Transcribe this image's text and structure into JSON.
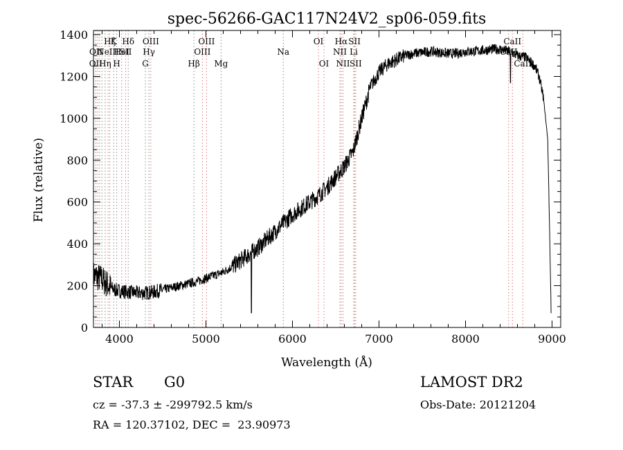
{
  "chart_data": {
    "type": "line",
    "title": "spec-56266-GAC117N24V2_sp06-059.fits",
    "xlabel": "Wavelength (Å)",
    "ylabel": "Flux (relative)",
    "xlim": [
      3700,
      9100
    ],
    "ylim": [
      0,
      1420
    ],
    "xticks": [
      4000,
      5000,
      6000,
      7000,
      8000,
      9000
    ],
    "yticks": [
      0,
      200,
      400,
      600,
      800,
      1000,
      1200,
      1400
    ],
    "grid": false,
    "legend": "none",
    "series": [
      {
        "x": [
          3700,
          3750,
          3800,
          3850,
          3900,
          3950,
          4000,
          4100,
          4200,
          4300,
          4400,
          4500,
          4600,
          4700,
          4800,
          4900,
          5000,
          5100,
          5200,
          5300,
          5400,
          5500,
          5600,
          5700,
          5800,
          5900,
          6000,
          6100,
          6200,
          6300,
          6400,
          6500,
          6600,
          6700,
          6800,
          6900,
          7000,
          7100,
          7200,
          7300,
          7400,
          7500,
          7600,
          7700,
          7800,
          7900,
          8000,
          8100,
          8200,
          8300,
          8400,
          8500,
          8600,
          8700,
          8800,
          8850,
          8900,
          8950,
          8970,
          8990
        ],
        "y": [
          250,
          240,
          230,
          210,
          190,
          180,
          175,
          170,
          165,
          165,
          170,
          180,
          190,
          200,
          210,
          220,
          235,
          250,
          265,
          290,
          320,
          350,
          380,
          420,
          460,
          500,
          540,
          570,
          600,
          630,
          670,
          720,
          770,
          840,
          1000,
          1150,
          1220,
          1260,
          1280,
          1300,
          1310,
          1315,
          1320,
          1315,
          1310,
          1310,
          1320,
          1320,
          1325,
          1330,
          1330,
          1320,
          1300,
          1290,
          1250,
          1200,
          1100,
          900,
          500,
          50
        ]
      }
    ],
    "absorption_features": [
      {
        "x": 5525,
        "y": 70
      },
      {
        "x": 8520,
        "y": 1170
      }
    ],
    "line_markers": [
      {
        "wavelength": 3727,
        "color": "#e07070",
        "label": "OII",
        "row": 3
      },
      {
        "wavelength": 3729,
        "color": "#e07070",
        "label": "OII",
        "row": 2
      },
      {
        "wavelength": 3750,
        "color": "#888888",
        "label": "",
        "row": 0
      },
      {
        "wavelength": 3771,
        "color": "#888888",
        "label": "",
        "row": 0
      },
      {
        "wavelength": 3798,
        "color": "#888888",
        "label": "",
        "row": 0
      },
      {
        "wavelength": 3835,
        "color": "#888888",
        "label": "Hη",
        "row": 3
      },
      {
        "wavelength": 3869,
        "color": "#e07070",
        "label": "NeIII",
        "row": 2
      },
      {
        "wavelength": 3889,
        "color": "#888888",
        "label": "Hζ",
        "row": 1
      },
      {
        "wavelength": 3934,
        "color": "#888888",
        "label": "K",
        "row": 1
      },
      {
        "wavelength": 3969,
        "color": "#888888",
        "label": "H",
        "row": 3
      },
      {
        "wavelength": 4026,
        "color": "#e07070",
        "label": "HeI",
        "row": 2
      },
      {
        "wavelength": 4072,
        "color": "#e07070",
        "label": "SII",
        "row": 2
      },
      {
        "wavelength": 4102,
        "color": "#888888",
        "label": "Hδ",
        "row": 1
      },
      {
        "wavelength": 4300,
        "color": "#888888",
        "label": "G",
        "row": 3
      },
      {
        "wavelength": 4341,
        "color": "#888888",
        "label": "Hγ",
        "row": 2
      },
      {
        "wavelength": 4363,
        "color": "#e07070",
        "label": "OIII",
        "row": 1
      },
      {
        "wavelength": 4861,
        "color": "#888888",
        "label": "Hβ",
        "row": 3
      },
      {
        "wavelength": 4959,
        "color": "#e07070",
        "label": "OIII",
        "row": 2
      },
      {
        "wavelength": 5007,
        "color": "#e07070",
        "label": "OIII",
        "row": 1
      },
      {
        "wavelength": 5175,
        "color": "#888888",
        "label": "Mg",
        "row": 3
      },
      {
        "wavelength": 5894,
        "color": "#888888",
        "label": "Na",
        "row": 2
      },
      {
        "wavelength": 6300,
        "color": "#e07070",
        "label": "OI",
        "row": 1
      },
      {
        "wavelength": 6364,
        "color": "#e07070",
        "label": "OI",
        "row": 3
      },
      {
        "wavelength": 6548,
        "color": "#e07070",
        "label": "NII",
        "row": 2
      },
      {
        "wavelength": 6563,
        "color": "#888888",
        "label": "Hα",
        "row": 1
      },
      {
        "wavelength": 6584,
        "color": "#e07070",
        "label": "NII",
        "row": 3
      },
      {
        "wavelength": 6708,
        "color": "#888888",
        "label": "Li",
        "row": 2
      },
      {
        "wavelength": 6717,
        "color": "#e07070",
        "label": "SII",
        "row": 1
      },
      {
        "wavelength": 6731,
        "color": "#e07070",
        "label": "SII",
        "row": 3
      },
      {
        "wavelength": 8498,
        "color": "#e07070",
        "label": "CaII",
        "row": 2
      },
      {
        "wavelength": 8542,
        "color": "#e07070",
        "label": "CaII",
        "row": 1
      },
      {
        "wavelength": 8662,
        "color": "#e07070",
        "label": "CaII",
        "row": 3
      }
    ]
  },
  "info": {
    "class_label": "STAR",
    "subclass_label": "G0",
    "survey_label": "LAMOST DR2",
    "cz_text": "cz = -37.3 ± -299792.5 km/s",
    "obs_date_text": "Obs-Date: 20121204",
    "coords_text": "RA = 120.37102, DEC =  23.90973"
  }
}
